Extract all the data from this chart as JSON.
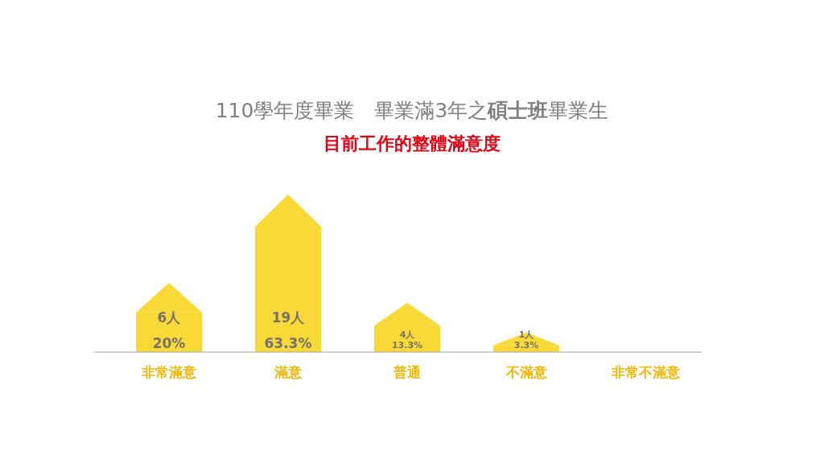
{
  "chart_data": {
    "type": "bar",
    "title": "110學年度畢業　畢業滿3年之**碩士班**畢業生",
    "subtitle": "目前工作的整體滿意度",
    "categories": [
      "非常滿意",
      "滿意",
      "普通",
      "不滿意",
      "非常不滿意"
    ],
    "values": [
      6,
      19,
      4,
      1,
      0
    ],
    "value_labels": [
      "6人\n20%",
      "19人\n63.3%",
      "4人\n13.3%",
      "1人\n3.3%",
      null
    ],
    "color": "#f8d936"
  }
}
